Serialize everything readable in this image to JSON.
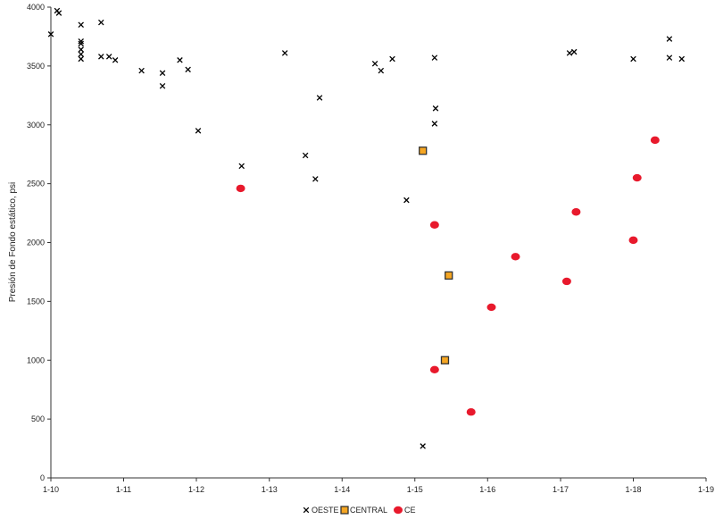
{
  "chart_data": {
    "type": "scatter",
    "title": "",
    "xlabel": "",
    "ylabel": "Presión de Fondo estático, psi",
    "x_ticks": [
      "1-10",
      "1-11",
      "1-12",
      "1-13",
      "1-14",
      "1-15",
      "1-16",
      "1-17",
      "1-18",
      "1-19"
    ],
    "x_range": [
      "2010-01",
      "2019-01"
    ],
    "ylim": [
      0,
      4000
    ],
    "y_ticks": [
      0,
      500,
      1000,
      1500,
      2000,
      2500,
      3000,
      3500,
      4000
    ],
    "grid": false,
    "legend_position": "bottom",
    "series": [
      {
        "name": "OESTE",
        "marker": "x",
        "color": "#000000",
        "points": [
          {
            "x": "2010-01-01",
            "y": 3770
          },
          {
            "x": "2010-02-01",
            "y": 3970
          },
          {
            "x": "2010-02-10",
            "y": 3950
          },
          {
            "x": "2010-06-01",
            "y": 3850
          },
          {
            "x": "2010-06-01",
            "y": 3710
          },
          {
            "x": "2010-06-01",
            "y": 3690
          },
          {
            "x": "2010-06-01",
            "y": 3640
          },
          {
            "x": "2010-06-01",
            "y": 3600
          },
          {
            "x": "2010-06-01",
            "y": 3560
          },
          {
            "x": "2010-09-10",
            "y": 3870
          },
          {
            "x": "2010-09-10",
            "y": 3580
          },
          {
            "x": "2010-10-20",
            "y": 3580
          },
          {
            "x": "2010-11-20",
            "y": 3550
          },
          {
            "x": "2011-04-01",
            "y": 3460
          },
          {
            "x": "2011-07-15",
            "y": 3440
          },
          {
            "x": "2011-07-15",
            "y": 3330
          },
          {
            "x": "2011-10-10",
            "y": 3550
          },
          {
            "x": "2011-11-20",
            "y": 3470
          },
          {
            "x": "2012-01-10",
            "y": 2950
          },
          {
            "x": "2012-08-15",
            "y": 2650
          },
          {
            "x": "2013-03-20",
            "y": 3610
          },
          {
            "x": "2013-07-01",
            "y": 2740
          },
          {
            "x": "2013-08-20",
            "y": 2540
          },
          {
            "x": "2013-09-10",
            "y": 3230
          },
          {
            "x": "2014-06-15",
            "y": 3520
          },
          {
            "x": "2014-07-15",
            "y": 3460
          },
          {
            "x": "2014-09-10",
            "y": 3560
          },
          {
            "x": "2014-11-20",
            "y": 2360
          },
          {
            "x": "2015-02-10",
            "y": 270
          },
          {
            "x": "2015-04-10",
            "y": 3570
          },
          {
            "x": "2015-04-15",
            "y": 3140
          },
          {
            "x": "2015-04-10",
            "y": 3010
          },
          {
            "x": "2017-02-15",
            "y": 3610
          },
          {
            "x": "2017-03-10",
            "y": 3620
          },
          {
            "x": "2018-01-01",
            "y": 3560
          },
          {
            "x": "2018-07-01",
            "y": 3730
          },
          {
            "x": "2018-07-01",
            "y": 3570
          },
          {
            "x": "2018-09-01",
            "y": 3560
          }
        ]
      },
      {
        "name": "CENTRAL",
        "marker": "square",
        "color": "#f5a623",
        "points": [
          {
            "x": "2015-02-10",
            "y": 2780
          },
          {
            "x": "2015-06-20",
            "y": 1720
          },
          {
            "x": "2015-06-01",
            "y": 1000
          }
        ]
      },
      {
        "name": "CE",
        "marker": "circle",
        "color": "#e8192c",
        "points": [
          {
            "x": "2012-08-10",
            "y": 2460
          },
          {
            "x": "2015-04-10",
            "y": 2150
          },
          {
            "x": "2015-04-10",
            "y": 920
          },
          {
            "x": "2015-10-10",
            "y": 560
          },
          {
            "x": "2016-01-20",
            "y": 1450
          },
          {
            "x": "2016-05-20",
            "y": 1880
          },
          {
            "x": "2017-02-01",
            "y": 1670
          },
          {
            "x": "2017-03-20",
            "y": 2260
          },
          {
            "x": "2018-01-01",
            "y": 2020
          },
          {
            "x": "2018-01-20",
            "y": 2550
          },
          {
            "x": "2018-04-20",
            "y": 2870
          }
        ]
      }
    ]
  }
}
